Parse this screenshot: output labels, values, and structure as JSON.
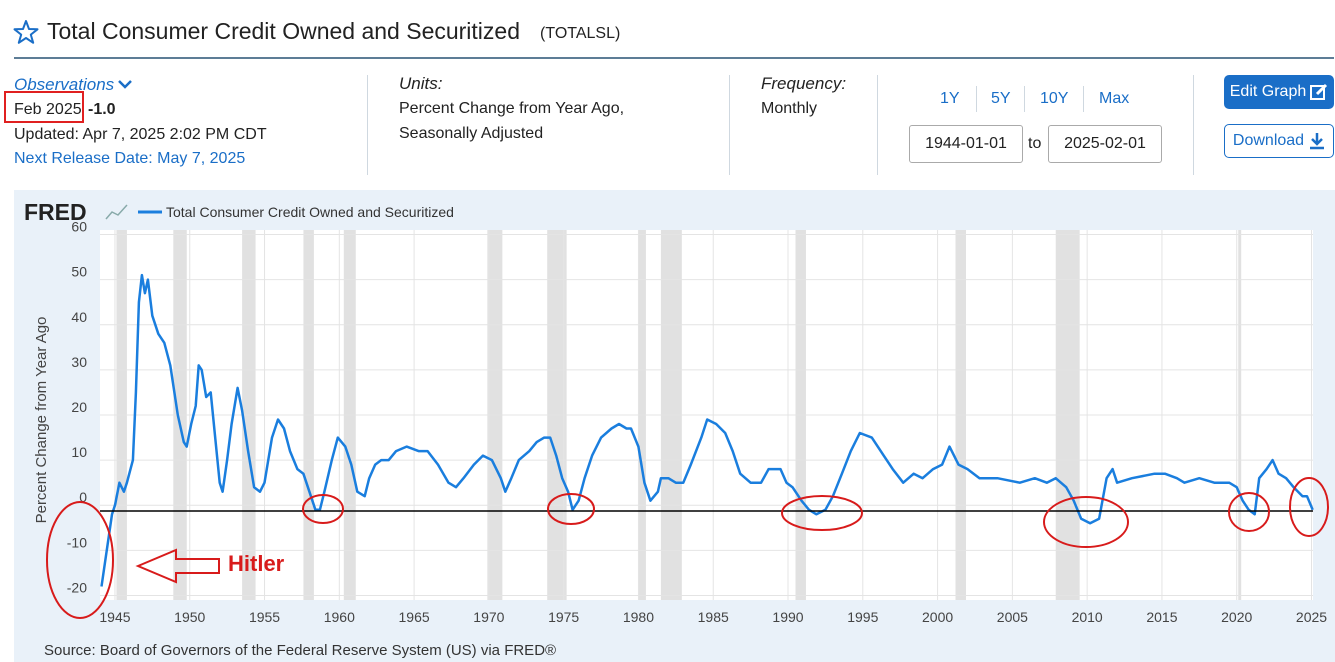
{
  "header": {
    "title": "Total Consumer Credit Owned and Securitized",
    "series_id": "(TOTALSL)"
  },
  "observation": {
    "label": "Observations",
    "date": "Feb 2025",
    "value": "-1.0",
    "updated": "Updated: Apr 7, 2025 2:02 PM CDT",
    "next_release": "Next Release Date: May 7, 2025"
  },
  "units": {
    "label": "Units:",
    "lines": [
      "Percent Change from Year Ago,",
      "Seasonally Adjusted"
    ]
  },
  "frequency": {
    "label": "Frequency:",
    "value": "Monthly"
  },
  "range": {
    "buttons": [
      "1Y",
      "5Y",
      "10Y",
      "Max"
    ],
    "start": "1944-01-01",
    "separator": "to",
    "end": "2025-02-01"
  },
  "actions": {
    "edit": "Edit Graph",
    "download": "Download"
  },
  "chart_data": {
    "type": "line",
    "logo": "FRED",
    "ylabel": "Percent Change from Year Ago",
    "source": "Source: Board of Governors of the Federal Reserve System (US) via FRED®",
    "annotation": "Hitler",
    "xlim": [
      1944,
      2025.1
    ],
    "ylim": [
      -21,
      61
    ],
    "xticks": [
      1945,
      1950,
      1955,
      1960,
      1965,
      1970,
      1975,
      1980,
      1985,
      1990,
      1995,
      2000,
      2005,
      2010,
      2015,
      2020,
      2025
    ],
    "yticks": [
      -20,
      -10,
      0,
      10,
      20,
      30,
      40,
      50,
      60
    ],
    "grid": true,
    "recessions": [
      [
        1945.1,
        1945.8
      ],
      [
        1948.9,
        1949.8
      ],
      [
        1953.5,
        1954.4
      ],
      [
        1957.6,
        1958.3
      ],
      [
        1960.3,
        1961.1
      ],
      [
        1969.9,
        1970.9
      ],
      [
        1973.9,
        1975.2
      ],
      [
        1980.0,
        1980.5
      ],
      [
        1981.5,
        1982.9
      ],
      [
        1990.5,
        1991.2
      ],
      [
        2001.2,
        2001.9
      ],
      [
        2007.9,
        2009.5
      ],
      [
        2020.1,
        2020.3
      ]
    ],
    "x": [
      1944.1,
      1944.8,
      1945.0,
      1945.3,
      1945.6,
      1945.8,
      1946.2,
      1946.4,
      1946.6,
      1946.8,
      1947.0,
      1947.2,
      1947.5,
      1947.9,
      1948.3,
      1948.7,
      1949.2,
      1949.6,
      1949.8,
      1950.1,
      1950.4,
      1950.6,
      1950.8,
      1951.1,
      1951.4,
      1951.7,
      1952.0,
      1952.2,
      1952.5,
      1952.8,
      1953.2,
      1953.5,
      1953.9,
      1954.3,
      1954.7,
      1955.0,
      1955.5,
      1955.9,
      1956.3,
      1956.7,
      1957.2,
      1957.6,
      1958.0,
      1958.4,
      1958.7,
      1959.0,
      1959.5,
      1959.9,
      1960.4,
      1960.8,
      1961.2,
      1961.7,
      1962.0,
      1962.4,
      1962.8,
      1963.3,
      1963.8,
      1964.5,
      1965.3,
      1965.9,
      1966.6,
      1967.3,
      1967.8,
      1968.3,
      1969.0,
      1969.6,
      1970.2,
      1970.8,
      1971.1,
      1971.5,
      1972.0,
      1972.7,
      1973.2,
      1973.7,
      1974.1,
      1974.5,
      1974.9,
      1975.3,
      1975.6,
      1976.0,
      1976.4,
      1976.9,
      1977.5,
      1978.2,
      1978.7,
      1979.2,
      1979.5,
      1980.0,
      1980.4,
      1980.8,
      1981.3,
      1981.5,
      1982.0,
      1982.5,
      1983.0,
      1983.5,
      1984.2,
      1984.6,
      1985.2,
      1985.8,
      1986.3,
      1986.8,
      1987.5,
      1988.2,
      1988.7,
      1989.5,
      1989.9,
      1990.3,
      1990.9,
      1991.4,
      1991.9,
      1992.5,
      1993.0,
      1993.6,
      1994.2,
      1994.8,
      1995.6,
      1996.4,
      1997.0,
      1997.7,
      1998.4,
      1999.0,
      1999.7,
      2000.3,
      2000.8,
      2001.4,
      2002.0,
      2002.8,
      2004.0,
      2005.5,
      2006.5,
      2007.3,
      2007.9,
      2008.6,
      2009.1,
      2009.6,
      2010.2,
      2010.8,
      2011.3,
      2011.7,
      2012.0,
      2013.0,
      2014.5,
      2015.2,
      2016.0,
      2016.5,
      2017.5,
      2018.5,
      2019.5,
      2020.0,
      2020.4,
      2020.8,
      2021.2,
      2021.5,
      2022.0,
      2022.4,
      2022.8,
      2023.3,
      2023.8,
      2024.4,
      2024.7,
      2025.08
    ],
    "series": [
      {
        "name": "Total Consumer Credit Owned and Securitized",
        "color": "#1a7ede",
        "values": [
          -18,
          -2,
          0,
          5,
          3,
          5,
          10,
          25,
          45,
          51,
          47,
          50,
          42,
          38,
          36,
          31,
          20,
          14,
          13,
          18,
          22,
          31,
          30,
          24,
          25,
          15,
          5,
          3,
          10,
          18,
          26,
          21,
          12,
          4,
          3,
          5,
          15,
          19,
          17,
          12,
          8,
          7,
          3,
          -1,
          -1,
          3,
          10,
          15,
          13,
          9,
          3,
          2,
          6,
          9,
          10,
          10,
          12,
          13,
          12,
          12,
          9,
          5,
          4,
          6,
          9,
          11,
          10,
          6,
          3,
          6,
          10,
          12,
          14,
          15,
          15,
          11,
          6,
          3,
          -1,
          1,
          6,
          11,
          15,
          17,
          18,
          17,
          17,
          13,
          5,
          1,
          3,
          6,
          6,
          5,
          5,
          9,
          15,
          19,
          18,
          16,
          12,
          7,
          5,
          5,
          8,
          8,
          5,
          4,
          1,
          -1,
          -2,
          -1,
          2,
          7,
          12,
          16,
          15,
          11,
          8,
          5,
          7,
          6,
          8,
          9,
          13,
          9,
          8,
          6,
          6,
          5,
          6,
          5,
          6,
          4,
          1,
          -3,
          -4,
          -3,
          6,
          8,
          5,
          6,
          7,
          7,
          6,
          5,
          6,
          5,
          5,
          4,
          1,
          -1,
          -2,
          6,
          8,
          10,
          7,
          6,
          4,
          2,
          2,
          -1
        ]
      }
    ]
  }
}
